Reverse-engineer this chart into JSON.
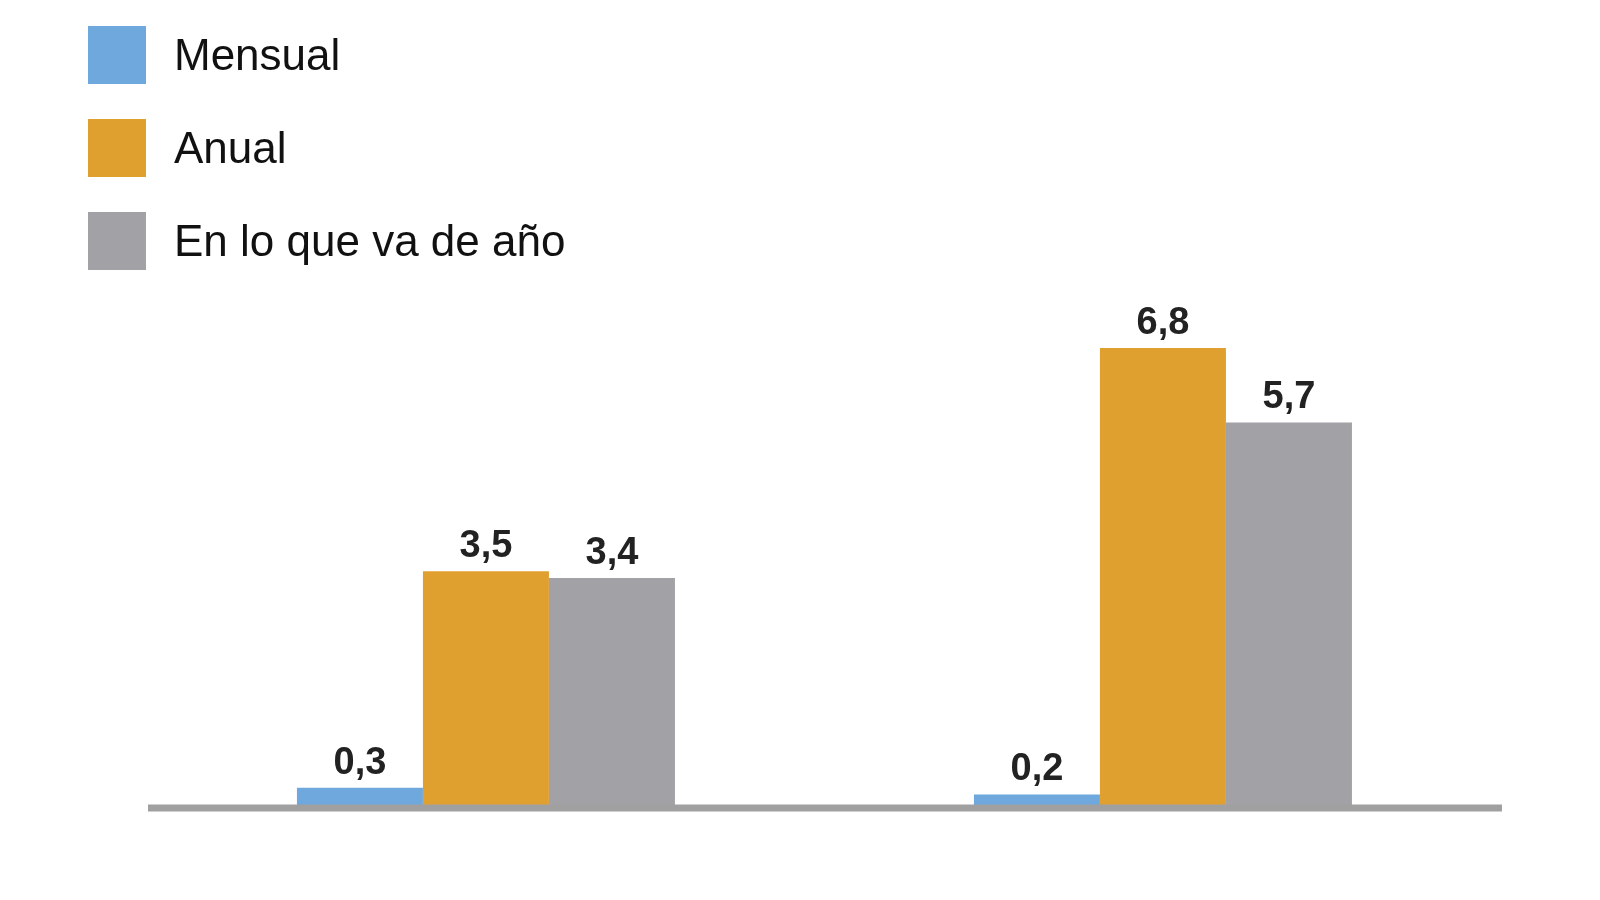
{
  "chart_data": {
    "type": "bar",
    "categories": [
      null,
      null
    ],
    "series": [
      {
        "name": "Mensual",
        "color": "#6fa8dc",
        "values": [
          0.3,
          0.2
        ],
        "value_labels": [
          "0,3",
          "0,2"
        ]
      },
      {
        "name": "Anual",
        "color": "#e0a030",
        "values": [
          3.5,
          6.8
        ],
        "value_labels": [
          "3,5",
          "6,8"
        ]
      },
      {
        "name": "En lo que va de año",
        "color": "#a2a2a6",
        "values": [
          3.4,
          5.7
        ],
        "value_labels": [
          "3,4",
          "5,7"
        ]
      }
    ],
    "legend": "top left",
    "grid": false
  }
}
